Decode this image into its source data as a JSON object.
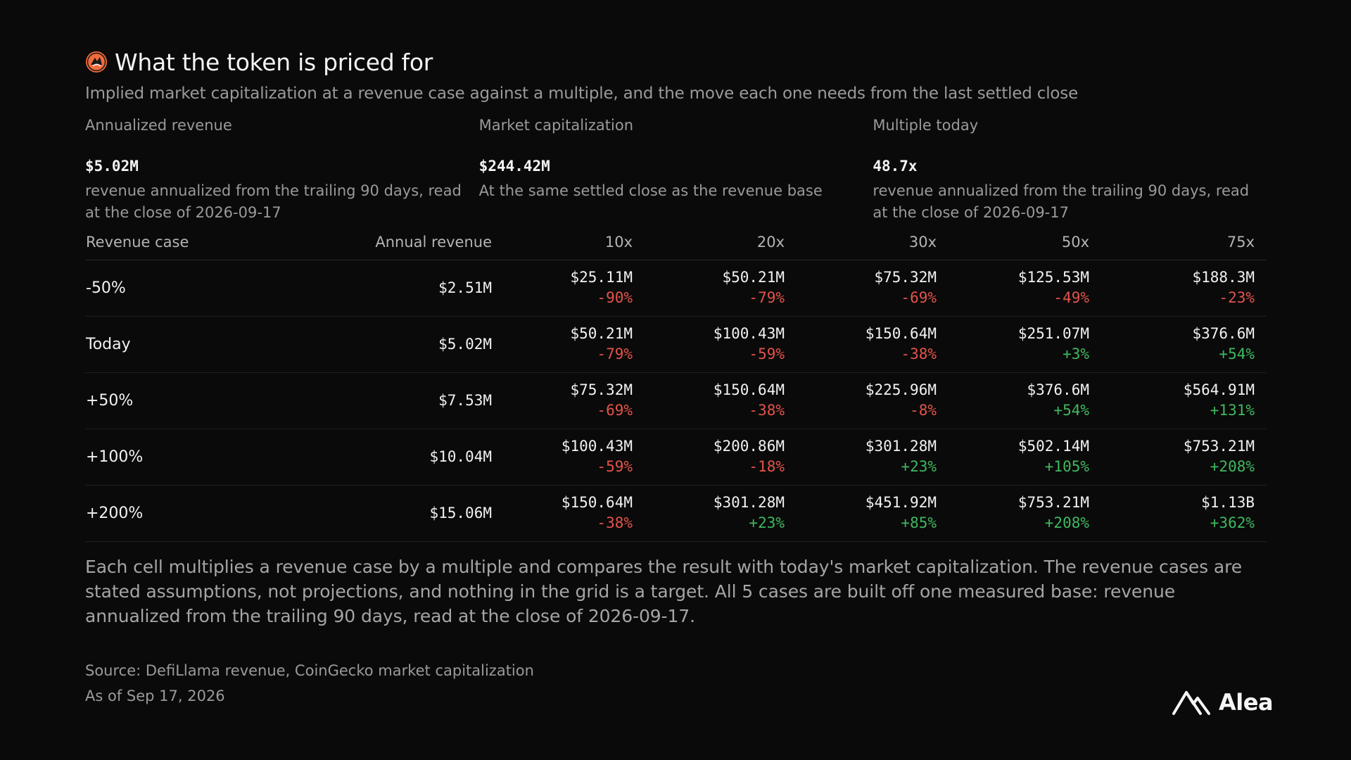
{
  "header": {
    "title": "What the token is priced for",
    "subtitle": "Implied market capitalization at a revenue case against a multiple, and the move each one needs from the last settled close",
    "icon": "token-logo-icon"
  },
  "stats": [
    {
      "label": "Annualized revenue",
      "value": "$5.02M",
      "note": "revenue annualized from the trailing 90 days, read at the close of 2026-09-17"
    },
    {
      "label": "Market capitalization",
      "value": "$244.42M",
      "note": "At the same settled close as the revenue base"
    },
    {
      "label": "Multiple today",
      "value": "48.7x",
      "note": "revenue annualized from the trailing 90 days, read at the close of 2026-09-17"
    }
  ],
  "table": {
    "headers": [
      "Revenue case",
      "Annual revenue",
      "10x",
      "20x",
      "30x",
      "50x",
      "75x"
    ],
    "rows": [
      {
        "case": "-50%",
        "annual": "$2.51M",
        "cells": [
          {
            "cap": "$25.11M",
            "move": "-90%"
          },
          {
            "cap": "$50.21M",
            "move": "-79%"
          },
          {
            "cap": "$75.32M",
            "move": "-69%"
          },
          {
            "cap": "$125.53M",
            "move": "-49%"
          },
          {
            "cap": "$188.3M",
            "move": "-23%"
          }
        ]
      },
      {
        "case": "Today",
        "annual": "$5.02M",
        "cells": [
          {
            "cap": "$50.21M",
            "move": "-79%"
          },
          {
            "cap": "$100.43M",
            "move": "-59%"
          },
          {
            "cap": "$150.64M",
            "move": "-38%"
          },
          {
            "cap": "$251.07M",
            "move": "+3%"
          },
          {
            "cap": "$376.6M",
            "move": "+54%"
          }
        ]
      },
      {
        "case": "+50%",
        "annual": "$7.53M",
        "cells": [
          {
            "cap": "$75.32M",
            "move": "-69%"
          },
          {
            "cap": "$150.64M",
            "move": "-38%"
          },
          {
            "cap": "$225.96M",
            "move": "-8%"
          },
          {
            "cap": "$376.6M",
            "move": "+54%"
          },
          {
            "cap": "$564.91M",
            "move": "+131%"
          }
        ]
      },
      {
        "case": "+100%",
        "annual": "$10.04M",
        "cells": [
          {
            "cap": "$100.43M",
            "move": "-59%"
          },
          {
            "cap": "$200.86M",
            "move": "-18%"
          },
          {
            "cap": "$301.28M",
            "move": "+23%"
          },
          {
            "cap": "$502.14M",
            "move": "+105%"
          },
          {
            "cap": "$753.21M",
            "move": "+208%"
          }
        ]
      },
      {
        "case": "+200%",
        "annual": "$15.06M",
        "cells": [
          {
            "cap": "$150.64M",
            "move": "-38%"
          },
          {
            "cap": "$301.28M",
            "move": "+23%"
          },
          {
            "cap": "$451.92M",
            "move": "+85%"
          },
          {
            "cap": "$753.21M",
            "move": "+208%"
          },
          {
            "cap": "$1.13B",
            "move": "+362%"
          }
        ]
      }
    ]
  },
  "explanation": "Each cell multiplies a revenue case by a multiple and compares the result with today's market capitalization. The revenue cases are stated assumptions, not projections, and nothing in the grid is a target. All 5 cases are built off one measured base: revenue annualized from the trailing 90 days, read at the close of 2026-09-17.",
  "footer": {
    "source": "Source: DefiLlama revenue, CoinGecko market capitalization",
    "as_of": "As of Sep 17, 2026",
    "brand": "Alea"
  },
  "colors": {
    "background": "#0a0a0a",
    "negative": "#e5534b",
    "positive": "#3fb95f",
    "accent": "#f26b3a"
  }
}
